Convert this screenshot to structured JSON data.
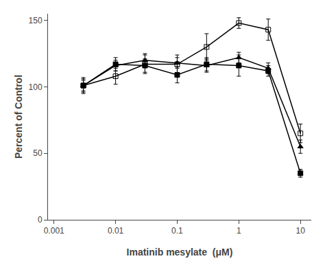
{
  "chart_data": {
    "type": "line",
    "xlabel": "Imatinib mesylate  (μM)",
    "ylabel": "Percent of Control",
    "log": "x",
    "grid": false,
    "x": [
      0.003,
      0.01,
      0.03,
      0.1,
      0.3,
      1.0,
      3.0,
      10.0
    ],
    "xlim": [
      0.0008,
      15
    ],
    "xticks": [
      0.001,
      0.01,
      0.1,
      1,
      10
    ],
    "ylim": [
      0,
      155
    ],
    "yticks": [
      0,
      50,
      100,
      150
    ],
    "series": [
      {
        "color": "#000000",
        "marker": "open_square",
        "line_style": "solid",
        "values": [
          101,
          108,
          117,
          117,
          130,
          148,
          143,
          65
        ],
        "yerr": [
          6,
          6,
          7,
          7,
          10,
          4,
          8,
          7
        ]
      },
      {
        "color": "#000000",
        "marker": "square",
        "line_style": "solid",
        "values": [
          101,
          117,
          116,
          109,
          117,
          116,
          112,
          35
        ],
        "yerr": [
          5,
          5,
          5,
          6,
          5,
          8,
          4,
          3
        ]
      },
      {
        "color": "#000000",
        "marker": "triangle",
        "line_style": "solid",
        "values": [
          101,
          116,
          120,
          118,
          116,
          122,
          114,
          55
        ],
        "yerr": [
          4,
          4,
          5,
          4,
          5,
          4,
          4,
          5
        ]
      }
    ]
  }
}
